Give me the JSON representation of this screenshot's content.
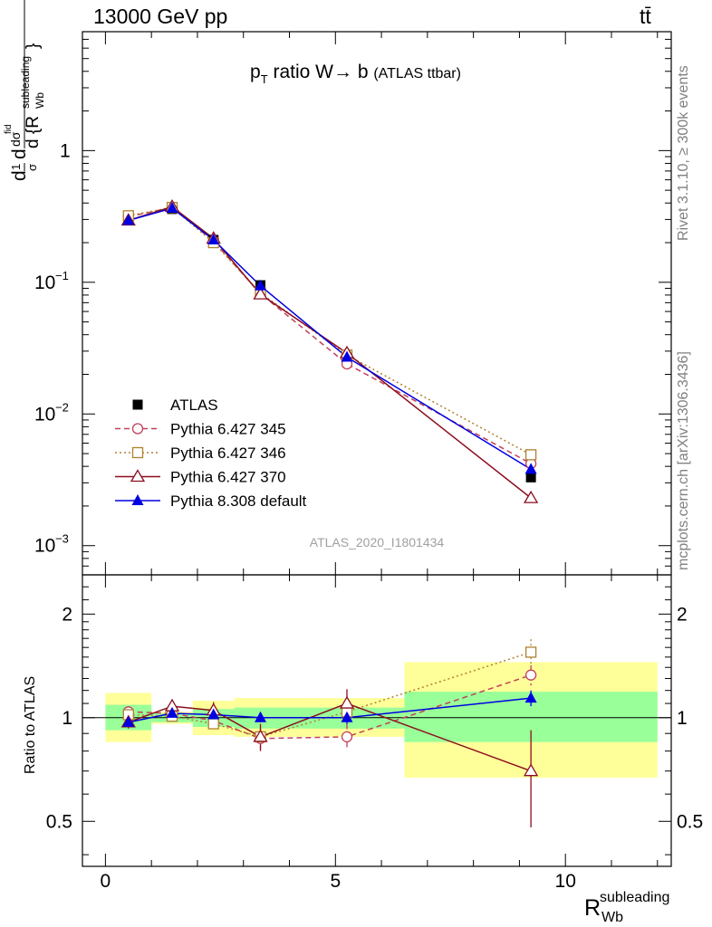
{
  "header": {
    "left": "13000 GeV pp",
    "right": "tt̄"
  },
  "side_labels": {
    "rivet": "Rivet 3.1.10, ≥ 300k events",
    "mcplots": "mcplots.cern.ch [arXiv:1306.3436]"
  },
  "chart_data": {
    "type": "line",
    "title": "p_T ratio W → b (ATLAS ttbar)",
    "title_parts": {
      "p": "p",
      "sub": "T",
      "rest": " ratio W",
      "arrow": "→",
      "b": " b ",
      "small": "(ATLAS ttbar)"
    },
    "analysis_label": "ATLAS_2020_I1801434",
    "xlabel": {
      "main": "R",
      "sub": "Wb",
      "sup": "subleading"
    },
    "ylabel": {
      "text": "dσ/dR_Wb^subleading (1/σ)"
    },
    "ratio_ylabel": "Ratio to ATLAS",
    "xlim": [
      -0.5,
      12.3
    ],
    "main_ylim": [
      0.0006,
      8
    ],
    "ratio_ylim": [
      0.37,
      2.6
    ],
    "main_yscale": "log",
    "ratio_yscale": "log",
    "x_ticks": [
      0,
      5,
      10
    ],
    "x_tick_labels": [
      "0",
      "5",
      "10"
    ],
    "main_y_ticks": [
      0.001,
      0.01,
      0.1,
      1
    ],
    "main_y_tick_labels": [
      {
        "base": "10",
        "exp": "−3"
      },
      {
        "base": "10",
        "exp": "−2"
      },
      {
        "base": "10",
        "exp": "−1"
      },
      {
        "base": "1",
        "exp": ""
      }
    ],
    "ratio_y_ticks": [
      0.5,
      1,
      2
    ],
    "ratio_y_tick_labels": [
      "0.5",
      "1",
      "2"
    ],
    "bins": [
      [
        0,
        1
      ],
      [
        1,
        1.9
      ],
      [
        1.9,
        2.8
      ],
      [
        2.8,
        4.5
      ],
      [
        4.5,
        6.5
      ],
      [
        6.5,
        12
      ]
    ],
    "x": [
      0.5,
      1.45,
      2.35,
      3.37,
      5.25,
      9.25
    ],
    "bands": [
      {
        "x0": 0,
        "x1": 1,
        "green": [
          0.92,
          1.09
        ],
        "yellow": [
          0.85,
          1.18
        ]
      },
      {
        "x0": 1,
        "x1": 1.9,
        "green": [
          0.97,
          1.03
        ],
        "yellow": [
          0.96,
          1.04
        ]
      },
      {
        "x0": 1.9,
        "x1": 2.8,
        "green": [
          0.94,
          1.06
        ],
        "yellow": [
          0.89,
          1.12
        ]
      },
      {
        "x0": 2.8,
        "x1": 4.5,
        "green": [
          0.93,
          1.07
        ],
        "yellow": [
          0.88,
          1.14
        ]
      },
      {
        "x0": 4.5,
        "x1": 6.5,
        "green": [
          0.93,
          1.07
        ],
        "yellow": [
          0.88,
          1.14
        ]
      },
      {
        "x0": 6.5,
        "x1": 12,
        "green": [
          0.85,
          1.19
        ],
        "yellow": [
          0.67,
          1.45
        ]
      }
    ],
    "legend_position": "lower-left",
    "series": [
      {
        "name": "ATLAS",
        "color": "#000000",
        "marker": "square-filled",
        "line": "none",
        "values": [
          0.3,
          0.36,
          0.21,
          0.095,
          0.027,
          0.0033
        ],
        "ratio": [
          1.0,
          1.0,
          1.0,
          1.0,
          1.0,
          1.0
        ]
      },
      {
        "name": "Pythia 6.427 345",
        "color": "#c0405a",
        "marker": "circle-open",
        "line": "dashed",
        "values": [
          0.315,
          0.37,
          0.205,
          0.082,
          0.024,
          0.0042
        ],
        "ratio": [
          1.04,
          1.03,
          0.98,
          0.87,
          0.88,
          1.33
        ],
        "ratio_err": [
          0.04,
          0.03,
          0.04,
          0.06,
          0.08,
          0.09
        ]
      },
      {
        "name": "Pythia 6.427 346",
        "color": "#b08030",
        "marker": "square-open",
        "line": "dotted",
        "values": [
          0.32,
          0.37,
          0.2,
          0.083,
          0.028,
          0.0049
        ],
        "ratio": [
          1.02,
          1.01,
          0.96,
          0.88,
          1.04,
          1.55
        ],
        "ratio_err": [
          0.03,
          0.03,
          0.04,
          0.06,
          0.08,
          0.14
        ]
      },
      {
        "name": "Pythia 6.427 370",
        "color": "#8b0e1e",
        "marker": "triangle-open",
        "line": "solid",
        "values": [
          0.295,
          0.375,
          0.215,
          0.081,
          0.029,
          0.0023
        ],
        "ratio": [
          0.97,
          1.08,
          1.05,
          0.88,
          1.1,
          0.7
        ],
        "ratio_err": [
          0.04,
          0.05,
          0.06,
          0.08,
          0.11,
          0.22
        ]
      },
      {
        "name": "Pythia 8.308 default",
        "color": "#0000e0",
        "marker": "triangle-filled",
        "line": "solid",
        "values": [
          0.295,
          0.365,
          0.21,
          0.094,
          0.027,
          0.0038
        ],
        "ratio": [
          0.97,
          1.03,
          1.02,
          1.0,
          1.0,
          1.14
        ],
        "ratio_err": [
          0.03,
          0.03,
          0.03,
          0.03,
          0.04,
          0.06
        ]
      }
    ]
  }
}
